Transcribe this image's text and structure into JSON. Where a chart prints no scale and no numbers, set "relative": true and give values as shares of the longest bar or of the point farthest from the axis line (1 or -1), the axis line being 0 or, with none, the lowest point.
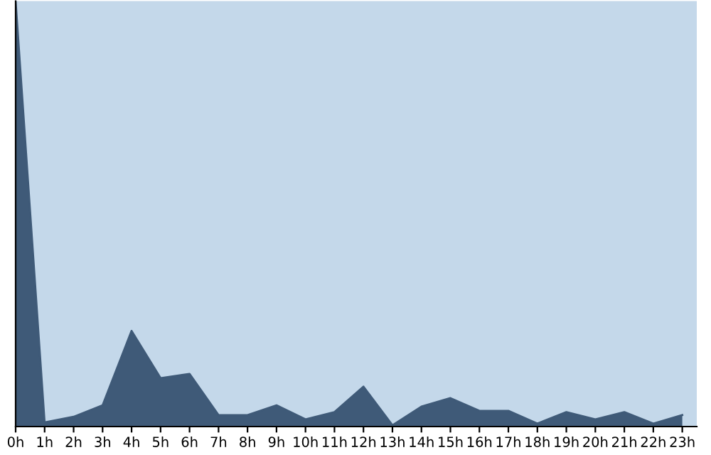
{
  "chart_data": {
    "type": "area",
    "relative": true,
    "categories": [
      "0h",
      "1h",
      "2h",
      "3h",
      "4h",
      "5h",
      "6h",
      "7h",
      "8h",
      "9h",
      "10h",
      "11h",
      "12h",
      "13h",
      "14h",
      "15h",
      "16h",
      "17h",
      "18h",
      "19h",
      "20h",
      "21h",
      "22h",
      "23h"
    ],
    "series": [
      {
        "color": "#3f5a78",
        "values": [
          1,
          0.01,
          0.023,
          0.05,
          0.225,
          0.114,
          0.124,
          0.027,
          0.027,
          0.05,
          0.017,
          0.034,
          0.094,
          0.003,
          0.047,
          0.067,
          0.037,
          0.037,
          0.007,
          0.034,
          0.017,
          0.034,
          0.007,
          0.027
        ]
      }
    ],
    "grid": false,
    "legend": false
  }
}
